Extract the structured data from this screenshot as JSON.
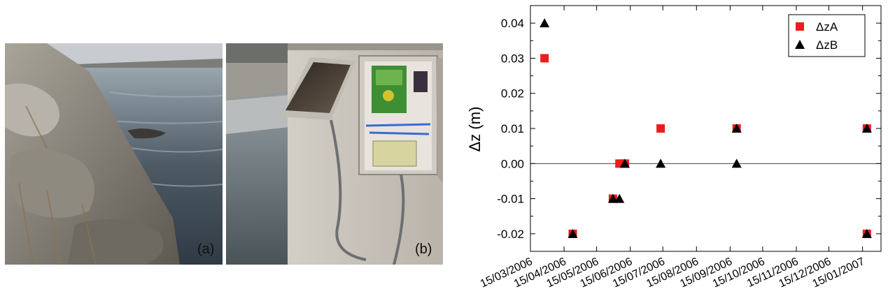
{
  "photos": [
    {
      "label": "(a)"
    },
    {
      "label": "(b)"
    }
  ],
  "chart_data": {
    "type": "scatter",
    "title": "",
    "xlabel": "",
    "ylabel": "Δz (m)",
    "ylim": [
      -0.025,
      0.045
    ],
    "yticks": [
      -0.02,
      -0.01,
      0.0,
      0.01,
      0.02,
      0.03,
      0.04
    ],
    "ytick_labels": [
      "-0.02",
      "-0.01",
      "0.00",
      "0.01",
      "0.02",
      "0.03",
      "0.04"
    ],
    "xlim": [
      "2006-03-15",
      "2007-02-01"
    ],
    "xticks": [
      "2006-03-15",
      "2006-04-15",
      "2006-05-15",
      "2006-06-15",
      "2006-07-15",
      "2006-08-15",
      "2006-09-15",
      "2006-10-15",
      "2006-11-15",
      "2006-12-15",
      "2007-01-15"
    ],
    "xtick_labels": [
      "15/03/2006",
      "15/04/2006",
      "15/05/2006",
      "15/06/2006",
      "15/07/2006",
      "15/08/2006",
      "15/09/2006",
      "15/10/2006",
      "15/11/2006",
      "15/12/2006",
      "15/01/2007"
    ],
    "zero_line": true,
    "grid": false,
    "legend_position": "top-right",
    "series": [
      {
        "name": "ΔzA",
        "marker": "square",
        "color": "#ee1c1c",
        "points": [
          {
            "x": "2006-03-28",
            "y": 0.03
          },
          {
            "x": "2006-04-23",
            "y": -0.02
          },
          {
            "x": "2006-05-30",
            "y": -0.01
          },
          {
            "x": "2006-06-05",
            "y": 0.0
          },
          {
            "x": "2006-06-10",
            "y": 0.0
          },
          {
            "x": "2006-07-13",
            "y": 0.01
          },
          {
            "x": "2006-09-21",
            "y": 0.01
          },
          {
            "x": "2007-01-19",
            "y": 0.01
          },
          {
            "x": "2007-01-19",
            "y": -0.02
          }
        ]
      },
      {
        "name": "ΔzB",
        "marker": "triangle",
        "color": "#000000",
        "points": [
          {
            "x": "2006-03-28",
            "y": 0.04
          },
          {
            "x": "2006-04-23",
            "y": -0.02
          },
          {
            "x": "2006-05-30",
            "y": -0.01
          },
          {
            "x": "2006-06-05",
            "y": -0.01
          },
          {
            "x": "2006-06-10",
            "y": 0.0
          },
          {
            "x": "2006-07-13",
            "y": 0.0
          },
          {
            "x": "2006-09-21",
            "y": 0.01
          },
          {
            "x": "2006-09-21",
            "y": 0.0
          },
          {
            "x": "2007-01-19",
            "y": 0.01
          },
          {
            "x": "2007-01-19",
            "y": -0.02
          }
        ]
      }
    ]
  }
}
